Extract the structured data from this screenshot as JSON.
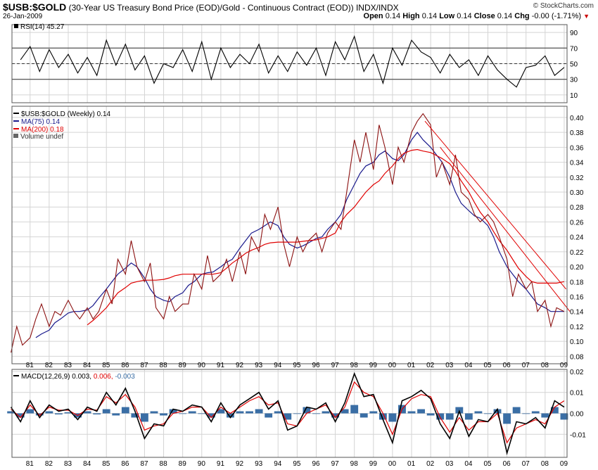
{
  "header": {
    "symbol": "$USB:$GOLD",
    "description": "(30-Year US Treasury Bond Price (EOD)/Gold - Continuous Contract (EOD))",
    "exchange": "INDX/INDX",
    "date": "26-Jan-2009",
    "brand": "© StockCharts.com",
    "open_label": "Open",
    "open": "0.14",
    "high_label": "High",
    "high": "0.14",
    "low_label": "Low",
    "low": "0.14",
    "close_label": "Close",
    "close": "0.14",
    "chg_label": "Chg",
    "chg": "-0.00 (-1.71%)"
  },
  "legend": {
    "rsi": "RSI(14) 45.27",
    "price": "$USB:$GOLD (Weekly) 0.14",
    "ma75": "MA(75) 0.14",
    "ma200": "MA(200) 0.18",
    "volume": "Volume undef",
    "macd_prefix": "MACD(12,26,9)",
    "macd_val": "0.003,",
    "macd_signal": "0.006,",
    "macd_hist": "-0.003"
  },
  "colors": {
    "price": "#8b1010",
    "ma75": "#1a1a8c",
    "ma200": "#e00000",
    "trend": "#e00000",
    "macd": "#000000",
    "signal": "#e00000",
    "hist": "#3a6ea5",
    "grid": "#d4d4d4"
  },
  "chart_data": [
    {
      "type": "line",
      "title": "RSI(14)",
      "ylim": [
        0,
        100
      ],
      "yticks": [
        "10",
        "30",
        "50",
        "70",
        "90"
      ],
      "reference_lines": [
        30,
        50,
        70
      ],
      "x": [
        1980.5,
        1981,
        1981.5,
        1982,
        1982.5,
        1983,
        1983.5,
        1984,
        1984.5,
        1985,
        1985.5,
        1986,
        1986.5,
        1987,
        1987.5,
        1988,
        1988.5,
        1989,
        1989.5,
        1990,
        1990.5,
        1991,
        1991.5,
        1992,
        1992.5,
        1993,
        1993.5,
        1994,
        1994.5,
        1995,
        1995.5,
        1996,
        1996.5,
        1997,
        1997.5,
        1998,
        1998.5,
        1999,
        1999.5,
        2000,
        2000.5,
        2001,
        2001.5,
        2002,
        2002.5,
        2003,
        2003.5,
        2004,
        2004.5,
        2005,
        2005.5,
        2006,
        2006.5,
        2007,
        2007.5,
        2008,
        2008.5,
        2009
      ],
      "values": [
        55,
        72,
        40,
        68,
        45,
        62,
        38,
        58,
        35,
        80,
        48,
        75,
        42,
        60,
        25,
        50,
        45,
        68,
        40,
        78,
        30,
        70,
        45,
        62,
        50,
        75,
        38,
        60,
        40,
        65,
        48,
        70,
        35,
        78,
        55,
        85,
        40,
        62,
        25,
        70,
        48,
        80,
        65,
        58,
        38,
        62,
        45,
        55,
        35,
        60,
        42,
        30,
        20,
        45,
        48,
        60,
        35,
        45.27
      ]
    },
    {
      "type": "line",
      "title": "$USB:$GOLD (Weekly)",
      "xlabel": "",
      "ylabel": "",
      "ylim": [
        0.07,
        0.415
      ],
      "yticks": [
        "0.08",
        "0.10",
        "0.12",
        "0.14",
        "0.16",
        "0.18",
        "0.20",
        "0.22",
        "0.24",
        "0.26",
        "0.28",
        "0.30",
        "0.32",
        "0.34",
        "0.36",
        "0.38",
        "0.40"
      ],
      "categories": [
        "81",
        "82",
        "83",
        "84",
        "85",
        "86",
        "87",
        "88",
        "89",
        "90",
        "91",
        "92",
        "93",
        "94",
        "95",
        "96",
        "97",
        "98",
        "99",
        "00",
        "01",
        "02",
        "03",
        "04",
        "05",
        "06",
        "07",
        "08",
        "09"
      ],
      "x": [
        1980.0,
        1980.3,
        1980.6,
        1981.0,
        1981.3,
        1981.6,
        1982.0,
        1982.3,
        1982.6,
        1983.0,
        1983.3,
        1983.6,
        1984.0,
        1984.3,
        1984.6,
        1985.0,
        1985.3,
        1985.6,
        1986.0,
        1986.3,
        1986.6,
        1987.0,
        1987.3,
        1987.6,
        1988.0,
        1988.3,
        1988.6,
        1989.0,
        1989.3,
        1989.6,
        1990.0,
        1990.3,
        1990.6,
        1991.0,
        1991.3,
        1991.6,
        1992.0,
        1992.3,
        1992.6,
        1993.0,
        1993.3,
        1993.6,
        1994.0,
        1994.3,
        1994.6,
        1995.0,
        1995.3,
        1995.6,
        1996.0,
        1996.3,
        1996.6,
        1997.0,
        1997.3,
        1997.6,
        1998.0,
        1998.3,
        1998.6,
        1999.0,
        1999.3,
        1999.6,
        2000.0,
        2000.3,
        2000.6,
        2001.0,
        2001.3,
        2001.6,
        2002.0,
        2002.3,
        2002.6,
        2003.0,
        2003.3,
        2003.6,
        2004.0,
        2004.3,
        2004.6,
        2005.0,
        2005.3,
        2005.6,
        2006.0,
        2006.3,
        2006.6,
        2007.0,
        2007.3,
        2007.6,
        2008.0,
        2008.3,
        2008.6,
        2009.0
      ],
      "series": [
        {
          "name": "$USB:$GOLD (Weekly)",
          "values": [
            0.085,
            0.12,
            0.095,
            0.105,
            0.13,
            0.15,
            0.12,
            0.14,
            0.135,
            0.155,
            0.14,
            0.13,
            0.145,
            0.13,
            0.14,
            0.17,
            0.15,
            0.21,
            0.19,
            0.235,
            0.2,
            0.18,
            0.205,
            0.145,
            0.13,
            0.16,
            0.14,
            0.15,
            0.15,
            0.19,
            0.17,
            0.215,
            0.18,
            0.19,
            0.21,
            0.18,
            0.22,
            0.19,
            0.24,
            0.22,
            0.27,
            0.25,
            0.28,
            0.23,
            0.2,
            0.24,
            0.22,
            0.235,
            0.245,
            0.22,
            0.245,
            0.26,
            0.25,
            0.3,
            0.37,
            0.34,
            0.38,
            0.33,
            0.39,
            0.36,
            0.31,
            0.36,
            0.34,
            0.38,
            0.395,
            0.405,
            0.39,
            0.32,
            0.34,
            0.31,
            0.35,
            0.3,
            0.29,
            0.27,
            0.26,
            0.27,
            0.26,
            0.24,
            0.21,
            0.16,
            0.19,
            0.17,
            0.18,
            0.14,
            0.155,
            0.12,
            0.145,
            0.14
          ]
        },
        {
          "name": "MA(75)",
          "values": [
            null,
            null,
            null,
            null,
            0.105,
            0.11,
            0.115,
            0.125,
            0.13,
            0.138,
            0.14,
            0.14,
            0.142,
            0.148,
            0.158,
            0.17,
            0.18,
            0.19,
            0.198,
            0.205,
            0.2,
            0.185,
            0.17,
            0.16,
            0.155,
            0.153,
            0.16,
            0.165,
            0.175,
            0.18,
            0.19,
            0.192,
            0.193,
            0.2,
            0.206,
            0.21,
            0.225,
            0.235,
            0.245,
            0.25,
            0.255,
            0.26,
            0.255,
            0.24,
            0.23,
            0.225,
            0.228,
            0.232,
            0.238,
            0.24,
            0.25,
            0.26,
            0.27,
            0.29,
            0.31,
            0.325,
            0.335,
            0.34,
            0.35,
            0.355,
            0.345,
            0.342,
            0.35,
            0.37,
            0.38,
            0.37,
            0.36,
            0.35,
            0.34,
            0.32,
            0.3,
            0.285,
            0.275,
            0.268,
            0.265,
            0.255,
            0.24,
            0.22,
            0.2,
            0.19,
            0.18,
            0.17,
            0.16,
            0.15,
            0.145,
            0.14,
            0.14,
            0.14
          ]
        },
        {
          "name": "MA(200)",
          "values": [
            null,
            null,
            null,
            null,
            null,
            null,
            null,
            null,
            null,
            null,
            null,
            null,
            0.122,
            0.128,
            0.135,
            0.145,
            0.155,
            0.165,
            0.172,
            0.178,
            0.18,
            0.182,
            0.182,
            0.182,
            0.183,
            0.185,
            0.188,
            0.19,
            0.19,
            0.19,
            0.19,
            0.19,
            0.19,
            0.192,
            0.198,
            0.205,
            0.212,
            0.218,
            0.222,
            0.226,
            0.23,
            0.232,
            0.233,
            0.233,
            0.233,
            0.233,
            0.234,
            0.235,
            0.236,
            0.238,
            0.24,
            0.245,
            0.26,
            0.27,
            0.28,
            0.29,
            0.3,
            0.31,
            0.315,
            0.325,
            0.335,
            0.345,
            0.352,
            0.356,
            0.357,
            0.355,
            0.353,
            0.349,
            0.345,
            0.338,
            0.328,
            0.315,
            0.3,
            0.286,
            0.273,
            0.26,
            0.247,
            0.235,
            0.222,
            0.21,
            0.198,
            0.187,
            0.18,
            0.178,
            0.178,
            0.178,
            0.178,
            0.18
          ]
        }
      ],
      "trendlines": [
        {
          "x": [
            2001.7,
            2009.1
          ],
          "values": [
            0.395,
            0.17
          ]
        },
        {
          "x": [
            2002.5,
            2009.3
          ],
          "values": [
            0.36,
            0.14
          ]
        }
      ]
    },
    {
      "type": "line",
      "title": "MACD(12,26,9)",
      "ylim": [
        -0.021,
        0.021
      ],
      "yticks": [
        "-0.01",
        "0.00",
        "0.01",
        "0.02"
      ],
      "x": [
        1980.0,
        1980.5,
        1981.0,
        1981.5,
        1982.0,
        1982.5,
        1983.0,
        1983.5,
        1984.0,
        1984.5,
        1985.0,
        1985.5,
        1986.0,
        1986.5,
        1987.0,
        1987.5,
        1988.0,
        1988.5,
        1989.0,
        1989.5,
        1990.0,
        1990.5,
        1991.0,
        1991.5,
        1992.0,
        1992.5,
        1993.0,
        1993.5,
        1994.0,
        1994.5,
        1995.0,
        1995.5,
        1996.0,
        1996.5,
        1997.0,
        1997.5,
        1998.0,
        1998.5,
        1999.0,
        1999.5,
        2000.0,
        2000.5,
        2001.0,
        2001.5,
        2002.0,
        2002.5,
        2003.0,
        2003.5,
        2004.0,
        2004.5,
        2005.0,
        2005.5,
        2006.0,
        2006.5,
        2007.0,
        2007.5,
        2008.0,
        2008.5,
        2009.0
      ],
      "series": [
        {
          "name": "MACD",
          "values": [
            0.003,
            -0.004,
            0.006,
            -0.002,
            0.004,
            0.001,
            0.002,
            -0.003,
            0.003,
            0.001,
            0.01,
            0.004,
            0.012,
            0.001,
            -0.012,
            -0.005,
            -0.006,
            0.002,
            0.001,
            0.004,
            0.003,
            -0.004,
            0.005,
            -0.002,
            0.004,
            0.007,
            0.01,
            0.002,
            0.006,
            -0.008,
            -0.006,
            0.003,
            0.002,
            0.005,
            -0.004,
            0.005,
            0.019,
            0.008,
            0.009,
            -0.003,
            -0.014,
            0.006,
            0.008,
            0.011,
            0.007,
            -0.005,
            -0.012,
            0.001,
            -0.011,
            -0.003,
            -0.004,
            0.002,
            -0.019,
            -0.004,
            -0.005,
            -0.002,
            -0.007,
            0.006,
            0.003
          ]
        },
        {
          "name": "Signal",
          "values": [
            0.002,
            -0.002,
            0.004,
            -0.001,
            0.003,
            0.0015,
            0.0015,
            -0.001,
            0.002,
            0.0015,
            0.008,
            0.005,
            0.009,
            0.003,
            -0.008,
            -0.006,
            -0.005,
            0.0,
            0.001,
            0.003,
            0.003,
            -0.002,
            0.003,
            0.0,
            0.003,
            0.006,
            0.008,
            0.004,
            0.005,
            -0.005,
            -0.006,
            0.0,
            0.002,
            0.004,
            -0.002,
            0.003,
            0.015,
            0.01,
            0.008,
            0.0,
            -0.01,
            0.002,
            0.007,
            0.009,
            0.008,
            -0.002,
            -0.009,
            -0.002,
            -0.008,
            -0.004,
            -0.004,
            0.0,
            -0.014,
            -0.007,
            -0.005,
            -0.003,
            -0.005,
            0.003,
            0.006
          ]
        }
      ]
    }
  ]
}
